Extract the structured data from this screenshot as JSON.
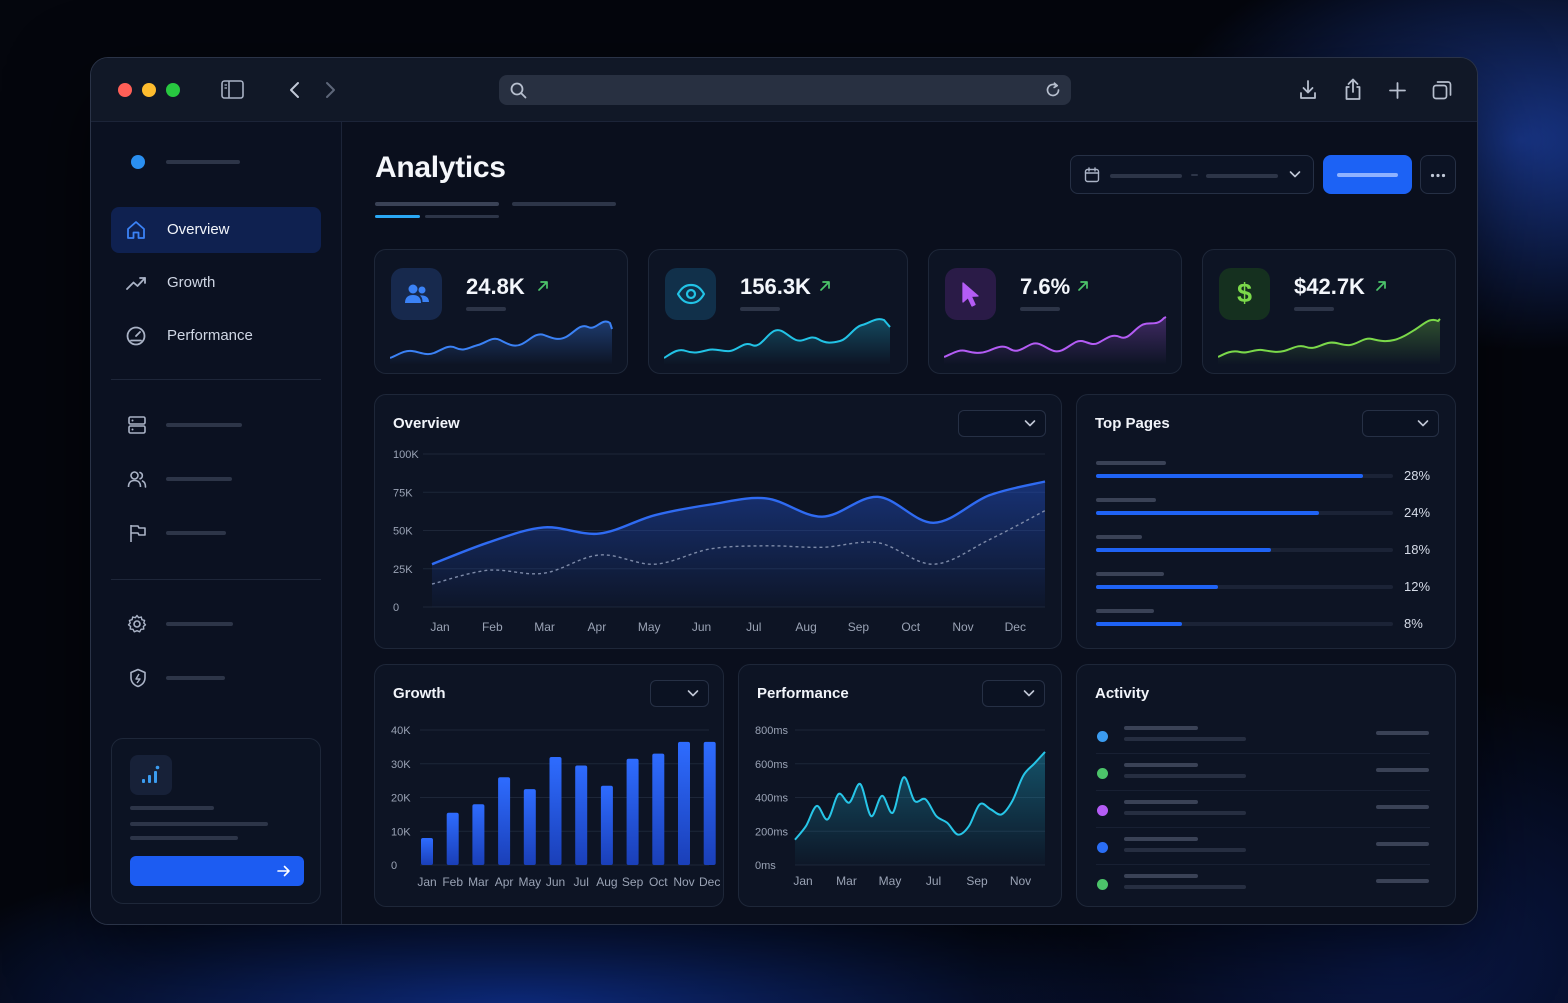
{
  "header": {
    "title": "Analytics"
  },
  "sidebar": {
    "items": [
      {
        "label": "Overview",
        "icon": "home-icon"
      },
      {
        "label": "Growth",
        "icon": "trending-up-icon"
      },
      {
        "label": "Performance",
        "icon": "gauge-icon"
      }
    ]
  },
  "stats": [
    {
      "value": "24.8K",
      "icon": "users-icon",
      "color": "#3b82f6"
    },
    {
      "value": "156.3K",
      "icon": "eye-icon",
      "color": "#22c3e6"
    },
    {
      "value": "7.6%",
      "icon": "cursor-icon",
      "color": "#b45cf5"
    },
    {
      "value": "$42.7K",
      "icon": "dollar-icon",
      "color": "#7bd94a"
    }
  ],
  "overview": {
    "title": "Overview"
  },
  "top_pages": {
    "title": "Top Pages",
    "items": [
      {
        "percent": "28%",
        "value": 0.9
      },
      {
        "percent": "24%",
        "value": 0.75
      },
      {
        "percent": "18%",
        "value": 0.59
      },
      {
        "percent": "12%",
        "value": 0.41
      },
      {
        "percent": "8%",
        "value": 0.29
      }
    ]
  },
  "growth": {
    "title": "Growth"
  },
  "performance": {
    "title": "Performance"
  },
  "activity": {
    "title": "Activity",
    "dot_colors": [
      "#3b9cf0",
      "#4cc46a",
      "#b45cf5",
      "#2a6ef5",
      "#4cc46a"
    ]
  },
  "chart_data": [
    {
      "type": "area",
      "title": "Overview",
      "categories": [
        "Jan",
        "Feb",
        "Mar",
        "Apr",
        "May",
        "Jun",
        "Jul",
        "Aug",
        "Sep",
        "Oct",
        "Nov",
        "Dec"
      ],
      "yticks": [
        "0",
        "25K",
        "50K",
        "75K",
        "100K"
      ],
      "ylim": [
        0,
        100000
      ],
      "series": [
        {
          "values": [
            28000,
            42000,
            52000,
            48000,
            60000,
            67000,
            71000,
            59000,
            72000,
            55000,
            73000,
            82000
          ]
        },
        {
          "values": [
            15000,
            24000,
            22000,
            34000,
            28000,
            38000,
            40000,
            39000,
            42000,
            28000,
            44000,
            63000
          ]
        }
      ],
      "grid": true
    },
    {
      "type": "bar",
      "title": "Growth",
      "categories": [
        "Jan",
        "Feb",
        "Mar",
        "Apr",
        "May",
        "Jun",
        "Jul",
        "Aug",
        "Sep",
        "Oct",
        "Nov",
        "Dec"
      ],
      "yticks": [
        "0",
        "10K",
        "20K",
        "30K",
        "40K"
      ],
      "ylim": [
        0,
        40000
      ],
      "values": [
        8000,
        15500,
        18000,
        26000,
        22500,
        32000,
        29500,
        23500,
        31500,
        33000,
        36500,
        36500
      ],
      "grid": true
    },
    {
      "type": "area",
      "title": "Performance",
      "categories": [
        "Jan",
        "Mar",
        "May",
        "Jul",
        "Sep",
        "Nov"
      ],
      "yticks": [
        "0ms",
        "200ms",
        "400ms",
        "600ms",
        "800ms"
      ],
      "ylim": [
        0,
        800
      ],
      "x": [
        0,
        0.5,
        1,
        1.5,
        2,
        2.5,
        3,
        3.5,
        4,
        4.5,
        5,
        5.5,
        6,
        6.5,
        7,
        7.5,
        8,
        8.5,
        9,
        9.5,
        10,
        10.5,
        11,
        11.5
      ],
      "values": [
        150,
        230,
        350,
        270,
        420,
        370,
        480,
        290,
        410,
        310,
        520,
        380,
        390,
        290,
        250,
        180,
        230,
        360,
        330,
        300,
        380,
        530,
        600,
        670
      ],
      "grid": true
    }
  ]
}
